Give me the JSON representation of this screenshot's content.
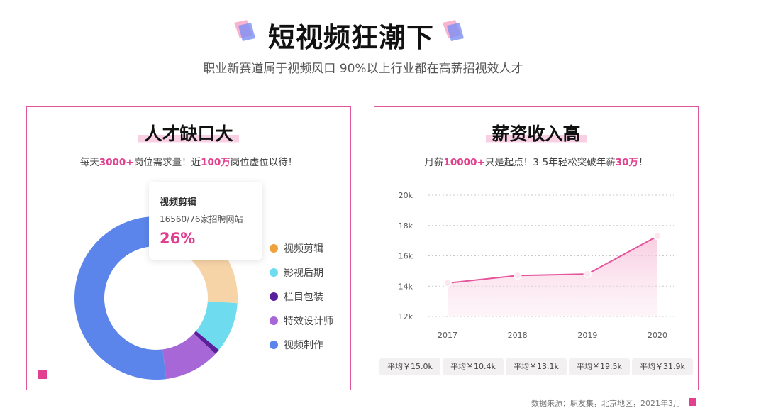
{
  "header": {
    "title": "短视频狂潮下",
    "subtitle": "职业新赛道属于视频风口  90%以上行业都在高薪招视效人才"
  },
  "left_panel": {
    "title": "人才缺口大",
    "desc_pre": "每天",
    "desc_hl1": "3000+",
    "desc_mid": "岗位需求量！近",
    "desc_hl2": "100万",
    "desc_post": "岗位虚位以待！",
    "tooltip": {
      "title": "视频剪辑",
      "detail": "16560/76家招聘网站",
      "percent": "26%"
    }
  },
  "right_panel": {
    "title": "薪资收入高",
    "desc_pre": "月薪",
    "desc_hl1": "10000+",
    "desc_mid": "只是起点！3-5年轻松突破年薪",
    "desc_hl2": "30万",
    "desc_post": "！"
  },
  "averages": [
    "平均￥15.0k",
    "平均￥10.4k",
    "平均￥13.1k",
    "平均￥19.5k",
    "平均￥31.9k"
  ],
  "source": "数据来源：职友集，北京地区，2021年3月",
  "colors": {
    "accent": "#e0408f",
    "border": "#e0569a",
    "line": "#e5559b"
  },
  "chart_data": [
    {
      "type": "pie",
      "donut": true,
      "categories": [
        "视频剪辑",
        "影视后期",
        "栏目包装",
        "特效设计师",
        "视频制作"
      ],
      "values": [
        26,
        10,
        1,
        11,
        52
      ],
      "highlight": "视频剪辑",
      "colors": [
        "#f0a03c",
        "#6fdbee",
        "#5a1f9a",
        "#a867d6",
        "#5b85ea"
      ],
      "legend": "right"
    },
    {
      "type": "area",
      "x": [
        "2017",
        "2018",
        "2019",
        "2020"
      ],
      "values": [
        14.2,
        14.7,
        14.8,
        17.3
      ],
      "y_tick_labels": [
        "12k",
        "14k",
        "16k",
        "18k",
        "20k"
      ],
      "ylim": [
        12,
        20
      ],
      "grid": true
    }
  ]
}
